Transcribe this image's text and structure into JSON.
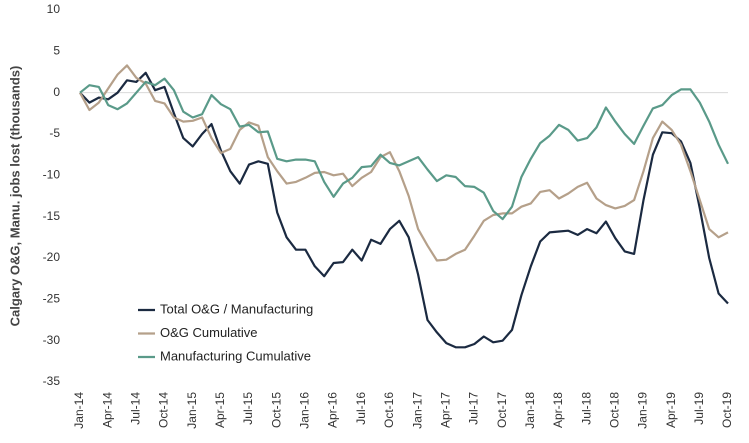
{
  "chart_data": {
    "type": "line",
    "y_label": "Calgary O&G, Manu. jobs lost (thousands)",
    "categories": [
      "Jan-14",
      null,
      null,
      "Apr-14",
      null,
      null,
      "Jul-14",
      null,
      null,
      "Oct-14",
      null,
      null,
      "Jan-15",
      null,
      null,
      "Apr-15",
      null,
      null,
      "Jul-15",
      null,
      null,
      "Oct-15",
      null,
      null,
      "Jan-16",
      null,
      null,
      "Apr-16",
      null,
      null,
      "Jul-16",
      null,
      null,
      "Oct-16",
      null,
      null,
      "Jan-17",
      null,
      null,
      "Apr-17",
      null,
      null,
      "Jul-17",
      null,
      null,
      "Oct-17",
      null,
      null,
      "Jan-18",
      null,
      null,
      "Apr-18",
      null,
      null,
      "Jul-18",
      null,
      null,
      "Oct-18",
      null,
      null,
      "Jan-19",
      null,
      null,
      "Apr-19",
      null,
      null,
      "Jul-19",
      null,
      null,
      "Oct-19"
    ],
    "series": [
      {
        "name": "Total O&G / Manufacturing",
        "color": "#1b2a41",
        "values": [
          0,
          -1.2,
          -0.6,
          -0.8,
          0,
          1.5,
          1.3,
          2.4,
          0.3,
          0.7,
          -2.5,
          -5.5,
          -6.5,
          -5,
          -3.8,
          -7,
          -9.5,
          -11,
          -8.7,
          -8.3,
          -8.6,
          -14.5,
          -17.5,
          -19,
          -19,
          -21,
          -22.2,
          -20.6,
          -20.5,
          -19,
          -20.3,
          -17.8,
          -18.3,
          -16.5,
          -15.5,
          -17.5,
          -22,
          -27.5,
          -29,
          -30.3,
          -30.8,
          -30.8,
          -30.4,
          -29.5,
          -30.2,
          -30,
          -28.7,
          -24.5,
          -21,
          -18,
          -16.9,
          -16.8,
          -16.7,
          -17.2,
          -16.5,
          -17,
          -15.6,
          -17.6,
          -19.2,
          -19.5,
          -13,
          -7.5,
          -4.8,
          -4.9,
          -5.9,
          -8.5,
          -14,
          -20,
          -24.3,
          -25.5
        ]
      },
      {
        "name": "O&G Cumulative",
        "color": "#b5a08a",
        "values": [
          0,
          -2.1,
          -1.2,
          0.5,
          2.2,
          3.3,
          1.8,
          1.1,
          -1,
          -1.3,
          -3,
          -3.5,
          -3.4,
          -3,
          -5.5,
          -7.3,
          -6.8,
          -4.5,
          -3.6,
          -4,
          -7.8,
          -9.5,
          -11,
          -10.8,
          -10.3,
          -9.7,
          -9.6,
          -10,
          -9.8,
          -11.3,
          -10.3,
          -9.6,
          -7.8,
          -7.2,
          -9.5,
          -12.5,
          -16.5,
          -18.5,
          -20.3,
          -20.2,
          -19.5,
          -19,
          -17.3,
          -15.5,
          -14.8,
          -14.6,
          -14.6,
          -13.8,
          -13.4,
          -12,
          -11.8,
          -12.8,
          -12.2,
          -11.4,
          -10.9,
          -12.8,
          -13.6,
          -14,
          -13.7,
          -13,
          -9.5,
          -5.5,
          -3.5,
          -4.5,
          -6.3,
          -9.5,
          -13,
          -16.5,
          -17.5,
          -16.9
        ]
      },
      {
        "name": "Manufacturing Cumulative",
        "color": "#5a9a89",
        "values": [
          0,
          0.9,
          0.7,
          -1.5,
          -2,
          -1.3,
          0,
          1.3,
          0.9,
          1.7,
          0.3,
          -2.3,
          -3,
          -2.6,
          -0.3,
          -1.4,
          -2,
          -4.1,
          -3.9,
          -4.8,
          -4.7,
          -8,
          -8.3,
          -8.1,
          -8.1,
          -8.3,
          -10.8,
          -12.6,
          -11,
          -10.3,
          -9,
          -8.9,
          -7.5,
          -8.5,
          -8.8,
          -8.3,
          -7.8,
          -9.3,
          -10.7,
          -10,
          -10.2,
          -11.3,
          -11.4,
          -12.1,
          -14.3,
          -15.3,
          -13.8,
          -10.2,
          -8,
          -6.1,
          -5.2,
          -3.9,
          -4.5,
          -5.8,
          -5.5,
          -4.2,
          -1.8,
          -3.5,
          -5,
          -6.2,
          -4,
          -1.9,
          -1.5,
          -0.3,
          0.4,
          0.4,
          -1.2,
          -3.5,
          -6.3,
          -8.6
        ]
      }
    ],
    "ylim": [
      -35,
      10
    ],
    "yticks": [
      10,
      5,
      0,
      -5,
      -10,
      -15,
      -20,
      -25,
      -30,
      -35
    ],
    "legend": "lower-left",
    "grid": false
  }
}
